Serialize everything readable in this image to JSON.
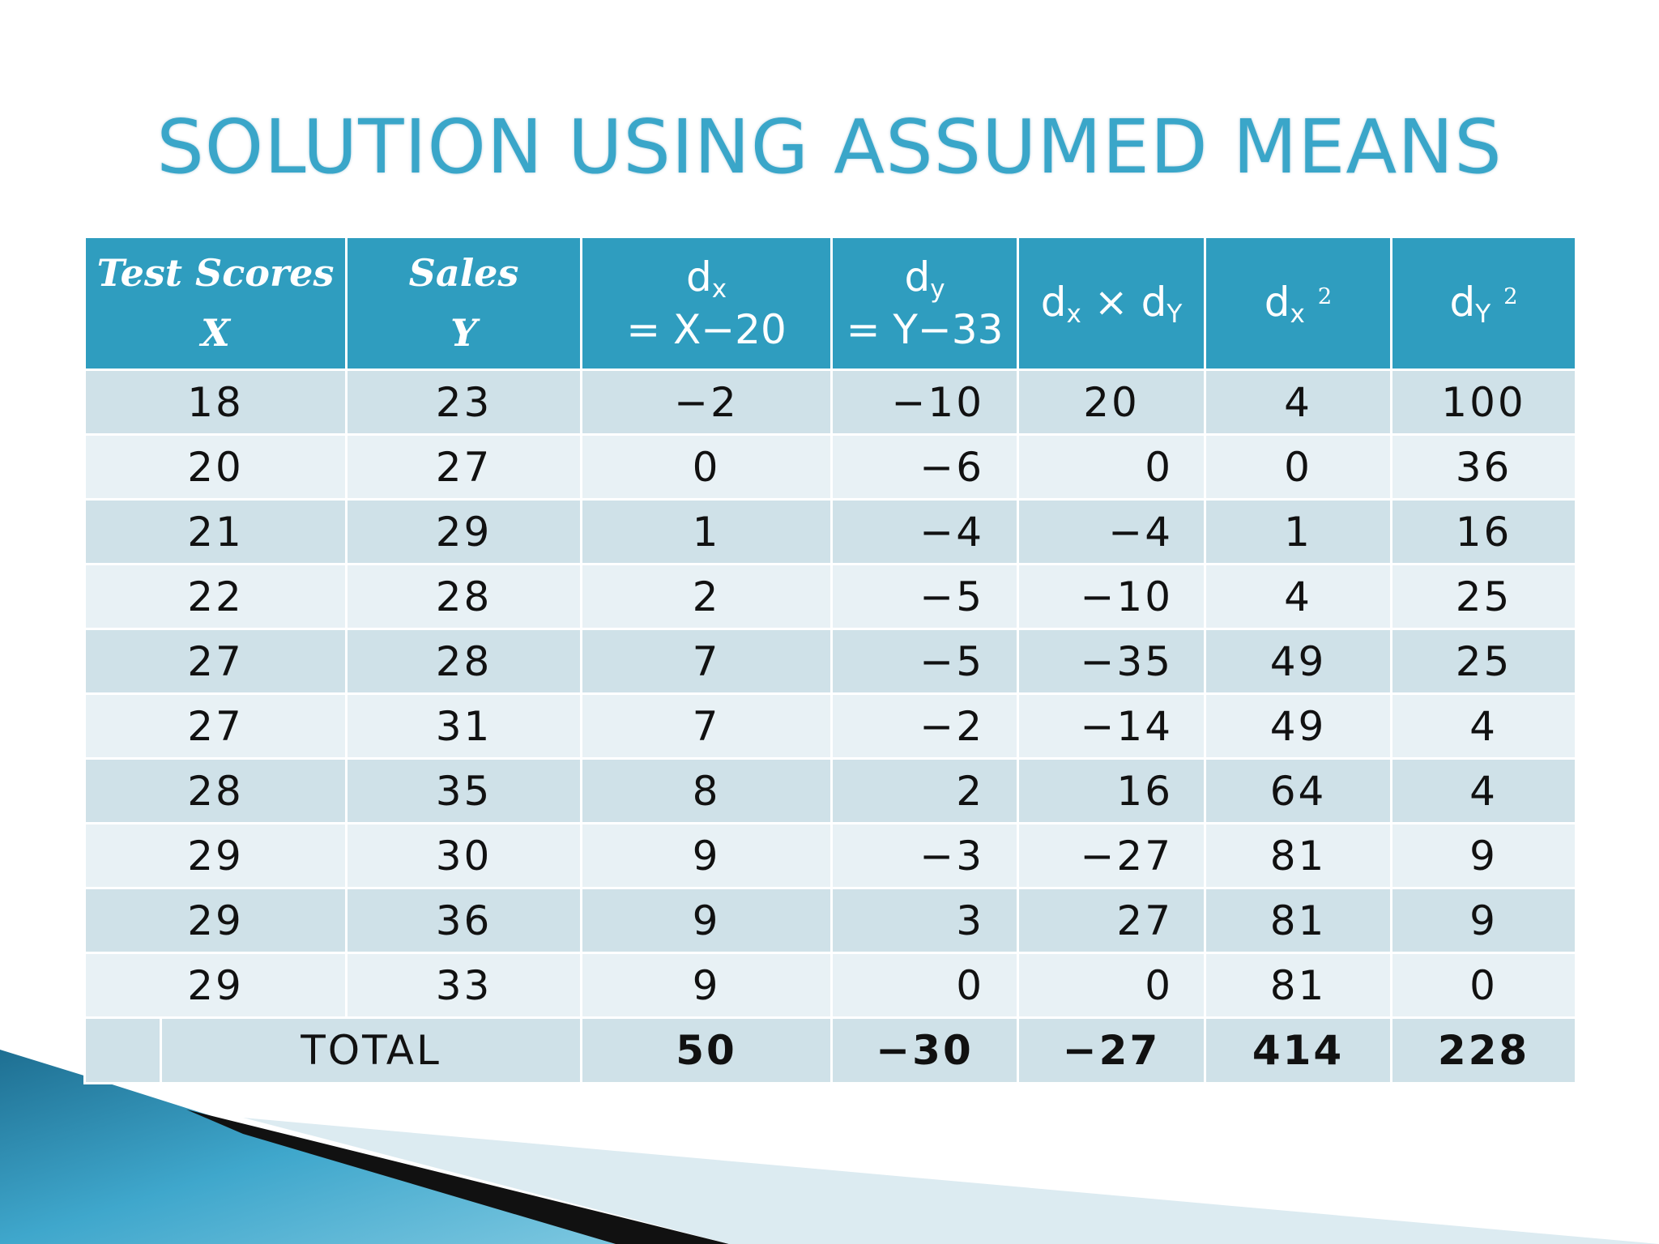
{
  "slide": {
    "title": "SOLUTION USING ASSUMED MEANS"
  },
  "table": {
    "headers": {
      "col1_line1": "Test Scores",
      "col1_line2": "X",
      "col2_line1": "Sales",
      "col2_line2": "Y",
      "col3_d": "d",
      "col3_sub": "x",
      "col3_line2": "= X−20",
      "col4_d": "d",
      "col4_sub": "y",
      "col4_line2": "= Y−33",
      "col5_d1": "d",
      "col5_sub1": "x",
      "col5_times": " × ",
      "col5_d2": "d",
      "col5_sub2": "Y",
      "col6_d": "d",
      "col6_sub": "x",
      "col6_sup": "2",
      "col7_d": "d",
      "col7_sub": "Y",
      "col7_sup": "2"
    },
    "rows": [
      [
        "18",
        "23",
        "−2",
        "−10",
        "20",
        "4",
        "100"
      ],
      [
        "20",
        "27",
        "0",
        "−6",
        "0",
        "0",
        "36"
      ],
      [
        "21",
        "29",
        "1",
        "−4",
        "−4",
        "1",
        "16"
      ],
      [
        "22",
        "28",
        "2",
        "−5",
        "−10",
        "4",
        "25"
      ],
      [
        "27",
        "28",
        "7",
        "−5",
        "−35",
        "49",
        "25"
      ],
      [
        "27",
        "31",
        "7",
        "−2",
        "−14",
        "49",
        "4"
      ],
      [
        "28",
        "35",
        "8",
        "2",
        "16",
        "64",
        "4"
      ],
      [
        "29",
        "30",
        "9",
        "−3",
        "−27",
        "81",
        "9"
      ],
      [
        "29",
        "36",
        "9",
        "3",
        "27",
        "81",
        "9"
      ],
      [
        "29",
        "33",
        "9",
        "0",
        "0",
        "81",
        "0"
      ]
    ],
    "total": {
      "label": "TOTAL",
      "dx": "50",
      "dy": "−30",
      "dxdy": "−27",
      "dx2": "414",
      "dy2": "228"
    }
  },
  "colors": {
    "title": "#3aa6c9",
    "header_bg": "#2f9dbf",
    "row_dark": "#cfe1e8",
    "row_light": "#e8f1f5"
  }
}
